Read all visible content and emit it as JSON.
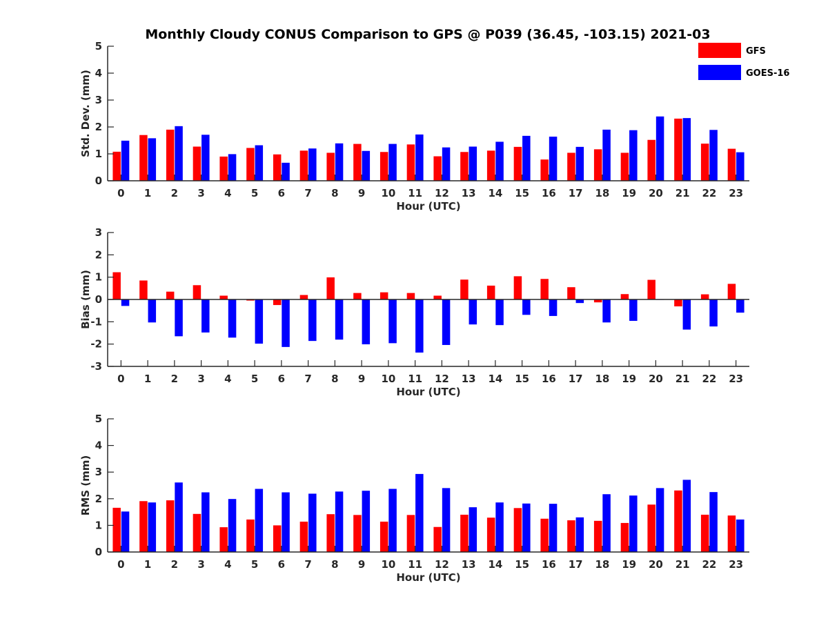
{
  "figure_title": "Monthly Cloudy CONUS Comparison to GPS @ P039 (36.45, -103.15) 2021-03",
  "colors": {
    "GFS": "#ff0000",
    "GOES-16": "#0000ff",
    "axis": "#262626"
  },
  "legend": {
    "placement": "top-right",
    "entries": [
      "GFS",
      "GOES-16"
    ]
  },
  "chart_data": [
    {
      "type": "bar",
      "title": "Monthly Cloudy CONUS Comparison to GPS @ P039 (36.45, -103.15) 2021-03",
      "xlabel": "Hour (UTC)",
      "ylabel": "Std. Dev. (mm)",
      "ylim": [
        0,
        5
      ],
      "yticks": [
        0,
        1,
        2,
        3,
        4,
        5
      ],
      "categories": [
        "0",
        "1",
        "2",
        "3",
        "4",
        "5",
        "6",
        "7",
        "8",
        "9",
        "10",
        "11",
        "12",
        "13",
        "14",
        "15",
        "16",
        "17",
        "18",
        "19",
        "20",
        "21",
        "22",
        "23"
      ],
      "series": [
        {
          "name": "GFS",
          "values": [
            1.08,
            1.7,
            1.9,
            1.27,
            0.9,
            1.22,
            0.98,
            1.12,
            1.04,
            1.37,
            1.07,
            1.35,
            0.91,
            1.07,
            1.12,
            1.26,
            0.79,
            1.04,
            1.17,
            1.04,
            1.52,
            2.31,
            1.38,
            1.19
          ]
        },
        {
          "name": "GOES-16",
          "values": [
            1.49,
            1.58,
            2.03,
            1.71,
            0.99,
            1.32,
            0.67,
            1.2,
            1.39,
            1.11,
            1.37,
            1.72,
            1.24,
            1.27,
            1.45,
            1.67,
            1.64,
            1.26,
            1.9,
            1.88,
            2.39,
            2.33,
            1.89,
            1.06
          ]
        }
      ]
    },
    {
      "type": "bar",
      "title": "",
      "xlabel": "Hour (UTC)",
      "ylabel": "Bias (mm)",
      "ylim": [
        -3,
        3
      ],
      "yticks": [
        -3,
        -2,
        -1,
        0,
        1,
        2,
        3
      ],
      "categories": [
        "0",
        "1",
        "2",
        "3",
        "4",
        "5",
        "6",
        "7",
        "8",
        "9",
        "10",
        "11",
        "12",
        "13",
        "14",
        "15",
        "16",
        "17",
        "18",
        "19",
        "20",
        "21",
        "22",
        "23"
      ],
      "series": [
        {
          "name": "GFS",
          "values": [
            1.22,
            0.85,
            0.35,
            0.64,
            0.17,
            -0.05,
            -0.25,
            0.2,
            0.99,
            0.29,
            0.32,
            0.29,
            0.17,
            0.89,
            0.62,
            1.04,
            0.92,
            0.55,
            -0.13,
            0.24,
            0.88,
            -0.31,
            0.23,
            0.7
          ]
        },
        {
          "name": "GOES-16",
          "values": [
            -0.29,
            -1.03,
            -1.65,
            -1.48,
            -1.71,
            -1.98,
            -2.13,
            -1.86,
            -1.8,
            -2.01,
            -1.96,
            -2.38,
            -2.04,
            -1.12,
            -1.15,
            -0.69,
            -0.74,
            -0.16,
            -1.03,
            -0.96,
            0.0,
            -1.35,
            -1.21,
            -0.59
          ]
        }
      ]
    },
    {
      "type": "bar",
      "title": "",
      "xlabel": "Hour (UTC)",
      "ylabel": "RMS (mm)",
      "ylim": [
        0,
        5
      ],
      "yticks": [
        0,
        1,
        2,
        3,
        4,
        5
      ],
      "categories": [
        "0",
        "1",
        "2",
        "3",
        "4",
        "5",
        "6",
        "7",
        "8",
        "9",
        "10",
        "11",
        "12",
        "13",
        "14",
        "15",
        "16",
        "17",
        "18",
        "19",
        "20",
        "21",
        "22",
        "23"
      ],
      "series": [
        {
          "name": "GFS",
          "values": [
            1.66,
            1.91,
            1.94,
            1.43,
            0.93,
            1.22,
            1.0,
            1.14,
            1.42,
            1.39,
            1.14,
            1.39,
            0.94,
            1.4,
            1.29,
            1.65,
            1.25,
            1.19,
            1.17,
            1.09,
            1.78,
            2.31,
            1.4,
            1.37
          ]
        },
        {
          "name": "GOES-16",
          "values": [
            1.52,
            1.86,
            2.61,
            2.24,
            1.99,
            2.37,
            2.24,
            2.19,
            2.27,
            2.3,
            2.37,
            2.93,
            2.4,
            1.68,
            1.86,
            1.82,
            1.81,
            1.3,
            2.17,
            2.12,
            2.4,
            2.71,
            2.25,
            1.22
          ]
        }
      ]
    }
  ]
}
